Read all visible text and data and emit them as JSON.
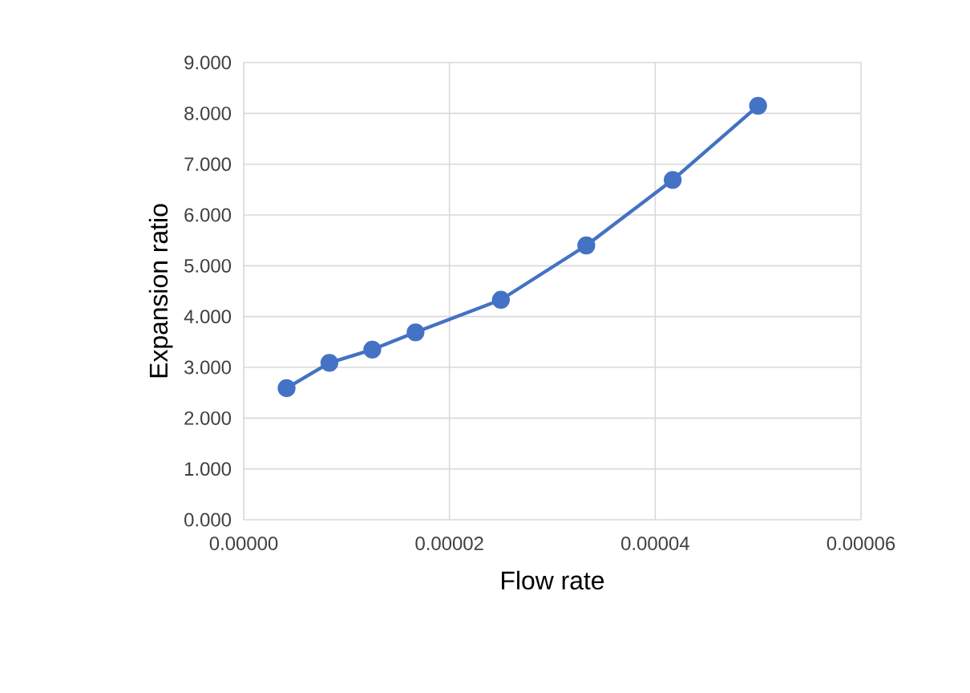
{
  "chart_data": {
    "type": "line",
    "xlabel": "Flow rate",
    "ylabel": "Expansion ratio",
    "x": [
      4.17e-06,
      8.33e-06,
      1.25e-05,
      1.67e-05,
      2.5e-05,
      3.33e-05,
      4.17e-05,
      5e-05
    ],
    "series": [
      {
        "color": "#4472c4",
        "values": [
          2.59,
          3.09,
          3.35,
          3.69,
          4.33,
          5.4,
          6.69,
          8.15
        ]
      }
    ],
    "xlim": [
      0,
      6e-05
    ],
    "xticks": [
      {
        "value": 0,
        "label": "0.00000"
      },
      {
        "value": 2e-05,
        "label": "0.00002"
      },
      {
        "value": 4e-05,
        "label": "0.00004"
      },
      {
        "value": 6e-05,
        "label": "0.00006"
      }
    ],
    "ylim": [
      0,
      9
    ],
    "yticks": [
      {
        "value": 0,
        "label": "0.000"
      },
      {
        "value": 1,
        "label": "1.000"
      },
      {
        "value": 2,
        "label": "2.000"
      },
      {
        "value": 3,
        "label": "3.000"
      },
      {
        "value": 4,
        "label": "4.000"
      },
      {
        "value": 5,
        "label": "5.000"
      },
      {
        "value": 6,
        "label": "6.000"
      },
      {
        "value": 7,
        "label": "7.000"
      },
      {
        "value": 8,
        "label": "8.000"
      },
      {
        "value": 9,
        "label": "9.000"
      }
    ],
    "grid": true,
    "marker": "circle",
    "line_style": "solid"
  }
}
